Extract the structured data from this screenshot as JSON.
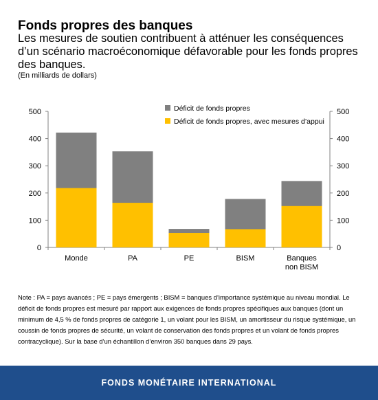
{
  "header": {
    "title": "Fonds propres des banques",
    "subtitle": "Les mesures de soutien contribuent à atténuer les conséquences d’un scénario macroéconomique défavorable pour les fonds propres des banques.",
    "unit": "(En milliards de dollars)"
  },
  "chart_data": {
    "type": "bar",
    "categories": [
      [
        "Monde"
      ],
      [
        "PA"
      ],
      [
        "PE"
      ],
      [
        "BISM"
      ],
      [
        "Banques",
        "non BISM"
      ]
    ],
    "series": [
      {
        "name": "Déficit de fonds propres",
        "values": [
          422,
          353,
          68,
          178,
          244
        ],
        "color": "#808080"
      },
      {
        "name": "Déficit de fonds propres, avec mesures d’appui",
        "values": [
          218,
          164,
          53,
          67,
          152
        ],
        "color": "#ffc000"
      }
    ],
    "overlap": true,
    "ylim": [
      0,
      500
    ],
    "yticks": [
      0,
      100,
      200,
      300,
      400,
      500
    ],
    "dual_y_axis": true,
    "grid": false,
    "legend_position": "top-right"
  },
  "note": "Note : PA = pays avancés ; PE = pays émergents ; BISM = banques d’importance systémique au niveau mondial. Le déficit de fonds propres est mesuré par rapport aux exigences de fonds propres spécifiques aux banques (dont un minimum de 4,5 % de fonds propres de catégorie 1, un volant pour les BISM, un amortisseur du risque systémique, un coussin de fonds propres de sécurité, un volant de conservation des fonds propres et un volant de fonds propres contracyclique). Sur la base d’un échantillon d’environ 350 banques dans 29 pays.",
  "footer": {
    "label": "FONDS MONÉTAIRE INTERNATIONAL"
  }
}
